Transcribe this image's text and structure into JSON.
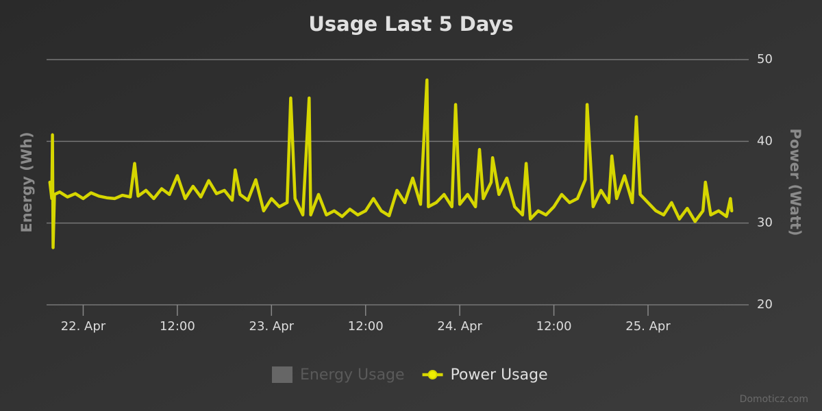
{
  "chart_data": {
    "type": "line",
    "title": "Usage Last 5 Days",
    "y_label": "Energy (Wh)",
    "y2_label": "Power (Watt)",
    "credits": "Domoticz.com",
    "grid": true,
    "xlim": [
      "21 Apr 19:20",
      "25 Apr 12:50"
    ],
    "xticks": [
      {
        "value": "22 Apr 00:00",
        "label": "22. Apr"
      },
      {
        "value": "22 Apr 12:00",
        "label": "12:00"
      },
      {
        "value": "23 Apr 00:00",
        "label": "23. Apr"
      },
      {
        "value": "23 Apr 12:00",
        "label": "12:00"
      },
      {
        "value": "24 Apr 00:00",
        "label": "24. Apr"
      },
      {
        "value": "24 Apr 12:00",
        "label": "12:00"
      },
      {
        "value": "25 Apr 00:00",
        "label": "25. Apr"
      }
    ],
    "y2lim": [
      20,
      50
    ],
    "y2ticks": [
      20,
      30,
      40,
      50
    ],
    "x": [
      "21 Apr 19:45",
      "21 Apr 20:00",
      "21 Apr 20:05",
      "21 Apr 20:10",
      "21 Apr 20:20",
      "21 Apr 21:00",
      "21 Apr 22:00",
      "21 Apr 23:00",
      "22 Apr 00:00",
      "22 Apr 01:00",
      "22 Apr 02:00",
      "22 Apr 03:00",
      "22 Apr 04:00",
      "22 Apr 05:00",
      "22 Apr 06:00",
      "22 Apr 06:33",
      "22 Apr 07:00",
      "22 Apr 08:00",
      "22 Apr 09:00",
      "22 Apr 10:00",
      "22 Apr 11:00",
      "22 Apr 12:00",
      "22 Apr 13:00",
      "22 Apr 14:00",
      "22 Apr 15:00",
      "22 Apr 16:00",
      "22 Apr 17:00",
      "22 Apr 18:00",
      "22 Apr 19:00",
      "22 Apr 19:23",
      "22 Apr 20:00",
      "22 Apr 21:00",
      "22 Apr 22:00",
      "22 Apr 23:00",
      "23 Apr 00:00",
      "23 Apr 01:00",
      "23 Apr 02:00",
      "23 Apr 02:27",
      "23 Apr 03:00",
      "23 Apr 04:00",
      "23 Apr 04:48",
      "23 Apr 05:00",
      "23 Apr 06:00",
      "23 Apr 07:00",
      "23 Apr 08:00",
      "23 Apr 09:00",
      "23 Apr 10:00",
      "23 Apr 11:00",
      "23 Apr 12:00",
      "23 Apr 13:00",
      "23 Apr 14:00",
      "23 Apr 15:00",
      "23 Apr 16:00",
      "23 Apr 17:00",
      "23 Apr 18:00",
      "23 Apr 19:00",
      "23 Apr 19:49",
      "23 Apr 20:00",
      "23 Apr 21:00",
      "23 Apr 22:00",
      "23 Apr 23:00",
      "23 Apr 23:28",
      "24 Apr 00:00",
      "24 Apr 01:00",
      "24 Apr 02:00",
      "24 Apr 02:31",
      "24 Apr 03:00",
      "24 Apr 04:00",
      "24 Apr 04:11",
      "24 Apr 05:00",
      "24 Apr 06:00",
      "24 Apr 07:00",
      "24 Apr 08:00",
      "24 Apr 08:28",
      "24 Apr 09:00",
      "24 Apr 10:00",
      "24 Apr 11:00",
      "24 Apr 12:00",
      "24 Apr 13:00",
      "24 Apr 14:00",
      "24 Apr 15:00",
      "24 Apr 16:00",
      "24 Apr 16:14",
      "24 Apr 17:00",
      "24 Apr 18:00",
      "24 Apr 19:00",
      "24 Apr 19:23",
      "24 Apr 20:00",
      "24 Apr 21:00",
      "24 Apr 22:00",
      "24 Apr 22:31",
      "24 Apr 23:00",
      "25 Apr 00:00",
      "25 Apr 01:00",
      "25 Apr 02:00",
      "25 Apr 03:00",
      "25 Apr 04:00",
      "25 Apr 05:00",
      "25 Apr 06:00",
      "25 Apr 07:00",
      "25 Apr 07:19",
      "25 Apr 08:00",
      "25 Apr 09:00",
      "25 Apr 10:00",
      "25 Apr 10:30",
      "25 Apr 10:40"
    ],
    "series": [
      {
        "name": "Energy Usage",
        "color": "#666666",
        "visible": false
      },
      {
        "name": "Power Usage",
        "color": "#d6d600",
        "axis": "y2",
        "values": [
          35.0,
          33.0,
          40.8,
          27.0,
          33.5,
          33.8,
          33.2,
          33.6,
          33.0,
          33.7,
          33.3,
          33.1,
          33.0,
          33.4,
          33.2,
          37.3,
          33.3,
          34.0,
          33.0,
          34.2,
          33.5,
          35.8,
          33.0,
          34.5,
          33.2,
          35.2,
          33.6,
          34.0,
          32.8,
          36.5,
          33.5,
          32.8,
          35.3,
          31.5,
          33.0,
          32.0,
          32.5,
          45.3,
          33.0,
          31.0,
          45.3,
          31.0,
          33.5,
          31.0,
          31.5,
          30.8,
          31.7,
          31.0,
          31.5,
          33.0,
          31.5,
          30.9,
          34.0,
          32.5,
          35.5,
          32.3,
          47.5,
          32.0,
          32.5,
          33.5,
          32.0,
          44.5,
          32.3,
          33.5,
          32.0,
          39.0,
          33.0,
          35.0,
          38.0,
          33.5,
          35.5,
          32.0,
          31.0,
          37.3,
          30.5,
          31.5,
          31.0,
          32.0,
          33.5,
          32.5,
          33.0,
          35.3,
          44.5,
          32.0,
          34.0,
          32.5,
          38.2,
          33.0,
          35.8,
          32.5,
          43.0,
          33.5,
          32.5,
          31.5,
          31.0,
          32.5,
          30.5,
          31.8,
          30.2,
          31.5,
          35.0,
          31.0,
          31.5,
          30.8,
          33.0,
          31.5
        ]
      }
    ]
  }
}
